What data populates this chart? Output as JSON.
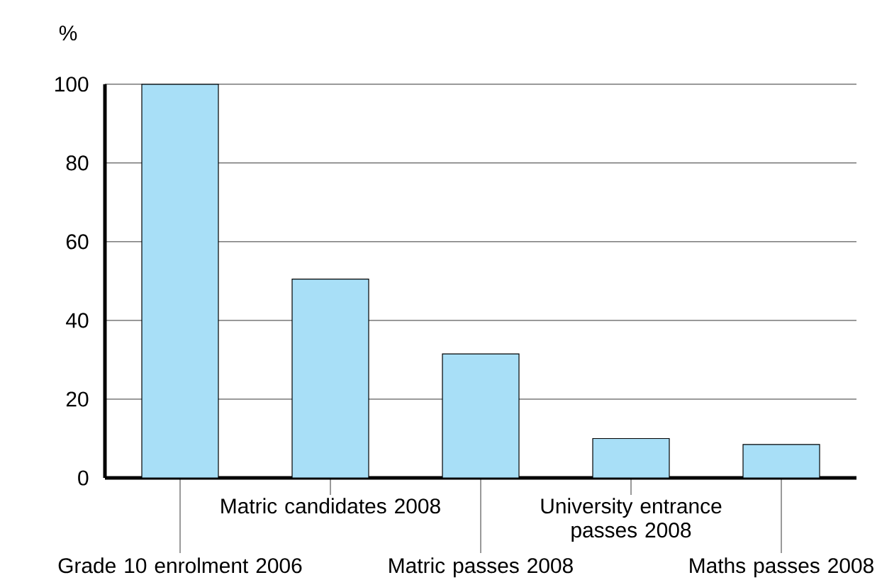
{
  "chart_data": {
    "type": "bar",
    "categories": [
      "Grade 10 enrolment 2006",
      "Matric candidates 2008",
      "Matric passes 2008",
      "University entrance passes 2008",
      "Maths passes 2008"
    ],
    "values": [
      100,
      50.5,
      31.5,
      10,
      8.5
    ],
    "color": "#a8dff7",
    "ylabel": "%",
    "ylim": [
      0,
      100
    ],
    "yticks": [
      0,
      20,
      40,
      60,
      80,
      100
    ],
    "grid": "y"
  }
}
